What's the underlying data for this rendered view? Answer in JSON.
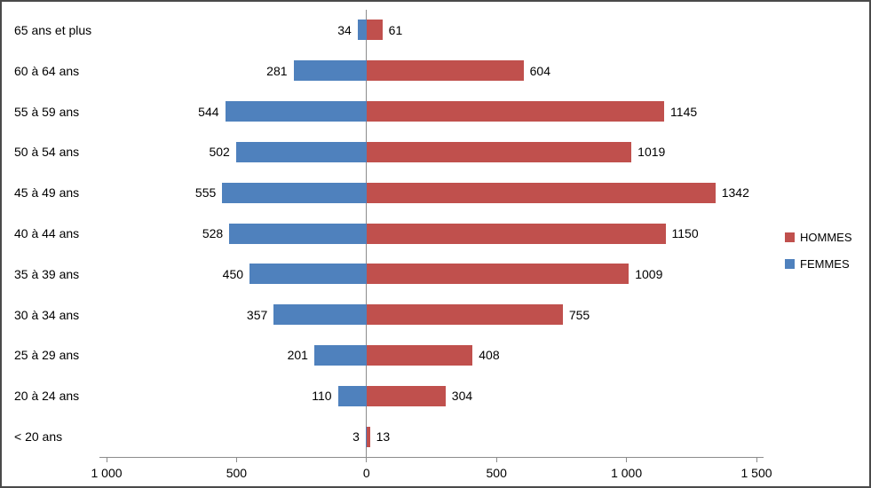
{
  "chart_data": {
    "type": "bar",
    "subtype": "horizontal-diverging-pyramid",
    "title": "",
    "xlabel": "",
    "ylabel": "",
    "categories": [
      "65 ans et plus",
      "60 à 64 ans",
      "55 à 59 ans",
      "50 à 54 ans",
      "45 à 49 ans",
      "40 à 44 ans",
      "35 à 39 ans",
      "30 à 34 ans",
      "25 à 29 ans",
      "20 à 24 ans",
      "< 20 ans"
    ],
    "series": [
      {
        "name": "HOMMES",
        "color": "#c0504d",
        "direction": "right",
        "values": [
          61,
          604,
          1145,
          1019,
          1342,
          1150,
          1009,
          755,
          408,
          304,
          13
        ]
      },
      {
        "name": "FEMMES",
        "color": "#4f81bd",
        "direction": "left",
        "values": [
          34,
          281,
          544,
          502,
          555,
          528,
          450,
          357,
          201,
          110,
          3
        ]
      }
    ],
    "xlim": [
      -1000,
      1500
    ],
    "x_ticks": [
      -1000,
      -500,
      0,
      500,
      1000,
      1500
    ],
    "x_tick_labels": [
      "1 000",
      "500",
      "0",
      "500",
      "1 000",
      "1 500"
    ],
    "grid": false,
    "legend_position": "right",
    "value_labels": "outside-bar-ends"
  },
  "colors": {
    "background": "#ffffff",
    "border": "#4a4a4a",
    "axis": "#8c8c8c",
    "text": "#000000",
    "hommes": "#c0504d",
    "femmes": "#4f81bd"
  }
}
